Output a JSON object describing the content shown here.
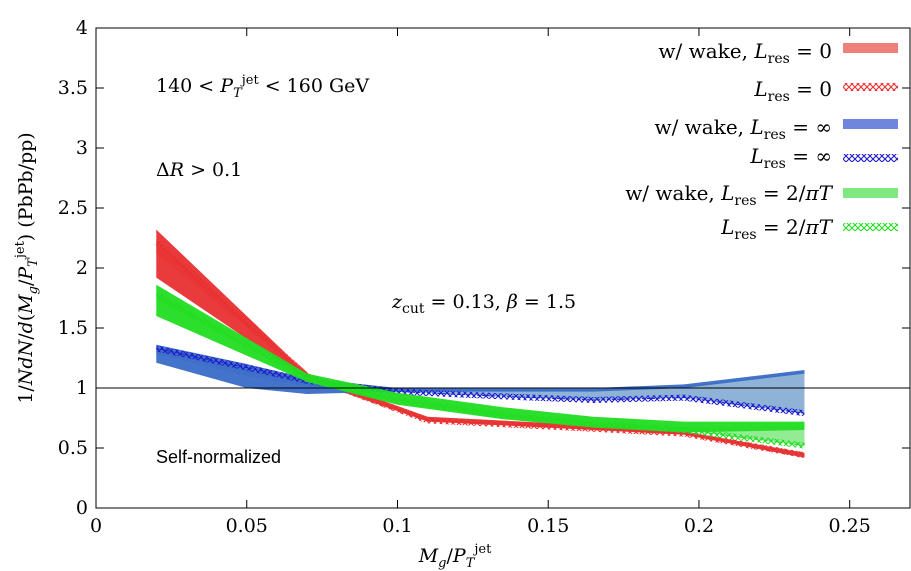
{
  "chart_data": {
    "type": "area",
    "xlabel": "M_g/P_T^jet",
    "ylabel": "1/NdN/d(M_g/P_T^jet) (PbPb/pp)",
    "xlim": [
      0,
      0.27
    ],
    "ylim": [
      0,
      4
    ],
    "xticks": [
      0,
      0.05,
      0.1,
      0.15,
      0.2,
      0.25
    ],
    "yticks": [
      0,
      0.5,
      1,
      1.5,
      2,
      2.5,
      3,
      3.5,
      4
    ],
    "xtick_labels": [
      "0",
      "0.05",
      "0.1",
      "0.15",
      "0.2",
      "0.25"
    ],
    "ytick_labels": [
      "0",
      "0.5",
      "1",
      "1.5",
      "2",
      "2.5",
      "3",
      "3.5",
      "4"
    ],
    "reference_line_y": 1,
    "grid": false,
    "legend_position": "top-right",
    "annotations": {
      "pt_range": "140 < P_T^jet < 160 GeV",
      "delta_r": "ΔR > 0.1",
      "zcut": "z_cut = 0.13, β = 1.5",
      "normalization": "Self-normalized"
    },
    "colors": {
      "red": "#e83030",
      "red_fill": "#f0807c",
      "blue": "#3a6cc8",
      "blue_fill": "#7aa6cf",
      "blue_dash": "#1c1ccc",
      "green": "#22dd22",
      "green_fill": "#80e880"
    },
    "series": [
      {
        "name": "w/ wake, L_res = 0",
        "style": "band",
        "color": "#e83030",
        "x": [
          0.02,
          0.07,
          0.11,
          0.165,
          0.195,
          0.235
        ],
        "upper": [
          2.32,
          1.12,
          0.76,
          0.69,
          0.64,
          0.46
        ],
        "lower": [
          1.92,
          1.07,
          0.72,
          0.65,
          0.61,
          0.42
        ]
      },
      {
        "name": "L_res = 0",
        "style": "hatched",
        "color": "#e83030",
        "x": [
          0.02,
          0.07,
          0.11,
          0.165,
          0.195,
          0.235
        ],
        "y": [
          2.22,
          1.1,
          0.73,
          0.66,
          0.62,
          0.44
        ]
      },
      {
        "name": "w/ wake, L_res = ∞",
        "style": "band",
        "color": "#3a6cc8",
        "x": [
          0.02,
          0.05,
          0.07,
          0.1,
          0.135,
          0.165,
          0.195,
          0.235
        ],
        "upper": [
          1.36,
          1.2,
          1.08,
          1.0,
          1.0,
          1.0,
          1.03,
          1.15
        ],
        "lower": [
          1.21,
          1.0,
          0.95,
          0.97,
          0.97,
          0.97,
          1.0,
          1.12
        ]
      },
      {
        "name": "L_res = ∞",
        "style": "hatched",
        "color": "#1c1ccc",
        "x": [
          0.02,
          0.05,
          0.07,
          0.1,
          0.135,
          0.165,
          0.195,
          0.235
        ],
        "y": [
          1.33,
          1.17,
          1.06,
          0.97,
          0.93,
          0.9,
          0.92,
          0.79
        ]
      },
      {
        "name": "w/ wake, L_res = 2/πT",
        "style": "band",
        "color": "#22dd22",
        "x": [
          0.02,
          0.07,
          0.1,
          0.135,
          0.165,
          0.195,
          0.235
        ],
        "upper": [
          1.86,
          1.12,
          0.96,
          0.84,
          0.76,
          0.72,
          0.72
        ],
        "lower": [
          1.6,
          1.05,
          0.86,
          0.74,
          0.67,
          0.63,
          0.65
        ]
      },
      {
        "name": "L_res = 2/πT",
        "style": "hatched",
        "color": "#22dd22",
        "x": [
          0.02,
          0.07,
          0.1,
          0.135,
          0.165,
          0.195,
          0.235
        ],
        "y": [
          1.78,
          1.08,
          0.9,
          0.77,
          0.7,
          0.65,
          0.52
        ]
      }
    ]
  }
}
